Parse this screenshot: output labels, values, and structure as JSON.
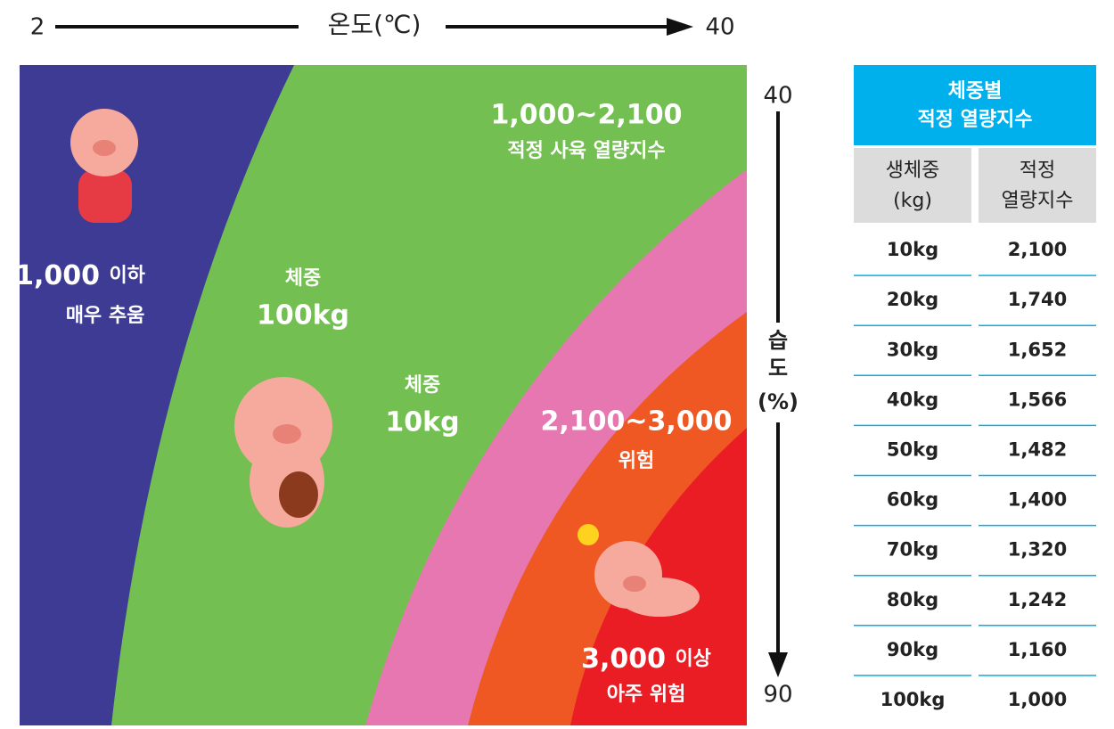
{
  "temperature_axis": {
    "min": "2",
    "label": "온도(℃)",
    "max": "40"
  },
  "humidity_axis": {
    "top": "40",
    "label": [
      "습",
      "도",
      "(%)"
    ],
    "bottom": "90"
  },
  "zones": [
    {
      "range": "1,000",
      "suffix": "이하",
      "desc": "매우 추움"
    },
    {
      "range": "1,000~2,100",
      "desc": "적정 사육 열량지수"
    },
    {
      "range": "2,100~3,000",
      "desc": "위험"
    },
    {
      "range": "3,000",
      "suffix": "이상",
      "desc": "아주 위험"
    }
  ],
  "weight_labels": [
    {
      "label": "체중",
      "value": "100kg"
    },
    {
      "label": "체중",
      "value": "10kg"
    }
  ],
  "table": {
    "title": [
      "체중별",
      "적정 열량지수"
    ],
    "headers": [
      [
        "생체중",
        "(kg)"
      ],
      [
        "적정",
        "열량지수"
      ]
    ],
    "rows": [
      [
        "10kg",
        "2,100"
      ],
      [
        "20kg",
        "1,740"
      ],
      [
        "30kg",
        "1,652"
      ],
      [
        "40kg",
        "1,566"
      ],
      [
        "50kg",
        "1,482"
      ],
      [
        "60kg",
        "1,400"
      ],
      [
        "70kg",
        "1,320"
      ],
      [
        "80kg",
        "1,242"
      ],
      [
        "90kg",
        "1,160"
      ],
      [
        "100kg",
        "1,000"
      ]
    ]
  }
}
